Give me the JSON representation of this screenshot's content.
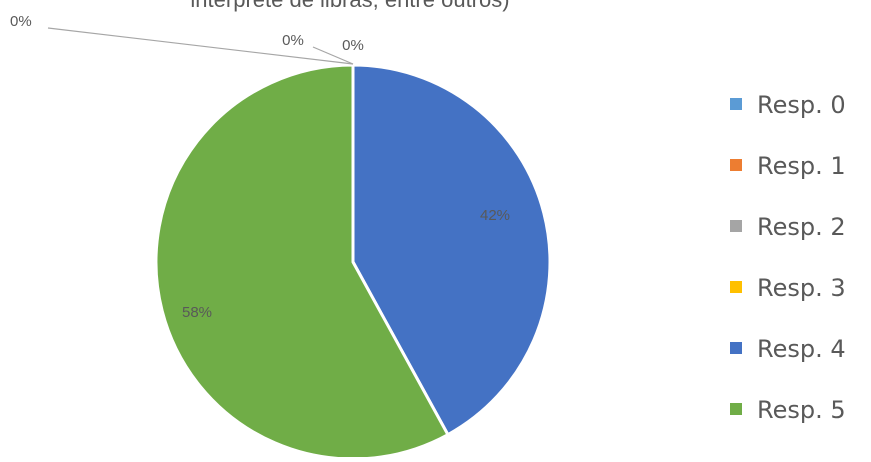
{
  "chart_data": {
    "type": "pie",
    "title": "intérprete de libras, entre outros)",
    "categories": [
      "Resp. 0",
      "Resp. 1",
      "Resp. 2",
      "Resp. 3",
      "Resp. 4",
      "Resp. 5"
    ],
    "values": [
      0,
      0,
      0,
      0,
      42,
      58
    ],
    "data_labels": [
      "0%",
      "0%",
      "0%",
      null,
      "42%",
      "58%"
    ],
    "colors": [
      "#5B9BD5",
      "#ED7D31",
      "#A5A5A5",
      "#FFC000",
      "#4472C4",
      "#70AD47"
    ],
    "legend_position": "right",
    "start": "top",
    "direction": "clockwise"
  }
}
